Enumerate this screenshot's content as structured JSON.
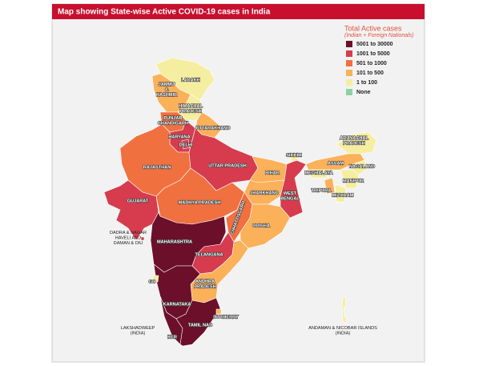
{
  "title": "Map showing State-wise Active COVID-19 cases in India",
  "legend": {
    "title": "Total Active cases",
    "subtitle": "(Indian + Foreign Nationals)",
    "items": [
      {
        "label": "5001 to 30000",
        "color": "#6b0f2a"
      },
      {
        "label": "1001 to 5000",
        "color": "#d63c4e"
      },
      {
        "label": "501 to 1000",
        "color": "#f07040"
      },
      {
        "label": "101 to 500",
        "color": "#fbb05a"
      },
      {
        "label": "1 to 100",
        "color": "#f5eea0"
      },
      {
        "label": "None",
        "color": "#8fd19e"
      }
    ]
  },
  "regions": [
    {
      "label": [
        "LADAKH"
      ],
      "color": "#f5eea0"
    },
    {
      "label": [
        "JAMMU",
        "&",
        "KASHMIR"
      ],
      "color": "#fbb05a"
    },
    {
      "label": [
        "HIMACHAL",
        "PRADESH"
      ],
      "color": "#f5eea0"
    },
    {
      "label": [
        "PUNJAB",
        "CHANDIGARH"
      ],
      "color": "#f07040"
    },
    {
      "label": [
        "UTTARAKHAND"
      ],
      "color": "#fbb05a"
    },
    {
      "label": [
        "HARYANA"
      ],
      "color": "#d63c4e"
    },
    {
      "label": [
        "DELHI"
      ],
      "color": "#d63c4e"
    },
    {
      "label": [
        "RAJASTHAN"
      ],
      "color": "#f07040"
    },
    {
      "label": [
        "UTTAR PRADESH"
      ],
      "color": "#d63c4e"
    },
    {
      "label": [
        "BIHAR"
      ],
      "color": "#fbb05a"
    },
    {
      "label": [
        "JHARKHAND"
      ],
      "color": "#fbb05a"
    },
    {
      "label": [
        "WEST",
        "BENGAL"
      ],
      "color": "#d63c4e"
    },
    {
      "label": [
        "GUJARAT"
      ],
      "color": "#d63c4e"
    },
    {
      "label": [
        "MADHYA PRADESH"
      ],
      "color": "#f07040"
    },
    {
      "label": [
        "CHHATTISGARH"
      ],
      "color": "#f07040"
    },
    {
      "label": [
        "ODISHA"
      ],
      "color": "#fbb05a"
    },
    {
      "label": [
        "MAHARASHTRA"
      ],
      "color": "#6b0f2a"
    },
    {
      "label": [
        "TELANGANA"
      ],
      "color": "#d63c4e"
    },
    {
      "label": [
        "ANDHRA",
        "PRADESH"
      ],
      "color": "#fbb05a"
    },
    {
      "label": [
        "KARNATAKA"
      ],
      "color": "#6b0f2a"
    },
    {
      "label": [
        "GO"
      ],
      "color": "#f5eea0"
    },
    {
      "label": [
        "KER"
      ],
      "color": "#6b0f2a"
    },
    {
      "label": [
        "TAMIL NAD"
      ],
      "color": "#6b0f2a"
    },
    {
      "label": [
        "DUCHERRY"
      ],
      "color": "#fbb05a"
    },
    {
      "label": [
        "SIKKIM"
      ],
      "color": "#f5eea0"
    },
    {
      "label": [
        "ARUNACHAL",
        "PRADESH"
      ],
      "color": "#f5eea0"
    },
    {
      "label": [
        "ASSAM"
      ],
      "color": "#fbb05a"
    },
    {
      "label": [
        "MEGHALAYA"
      ],
      "color": "#f5eea0"
    },
    {
      "label": [
        "NAGALAND"
      ],
      "color": "#f5eea0"
    },
    {
      "label": [
        "MANIPUR"
      ],
      "color": "#f5eea0"
    },
    {
      "label": [
        "TRIPURA"
      ],
      "color": "#fbb05a"
    },
    {
      "label": [
        "MIZORAM"
      ],
      "color": "#f5eea0"
    },
    {
      "label": [
        "DADRA & NAGAR",
        "HAVELI AND",
        "DAMAN & DIU"
      ],
      "color": "#d63c4e"
    },
    {
      "label": [
        "LAKSHADWEEP",
        "(INDIA)"
      ],
      "color": "#f5eea0"
    },
    {
      "label": [
        "ANDAMAN & NICOBAR ISLANDS",
        "(INDIA)"
      ],
      "color": "#f5eea0"
    }
  ]
}
